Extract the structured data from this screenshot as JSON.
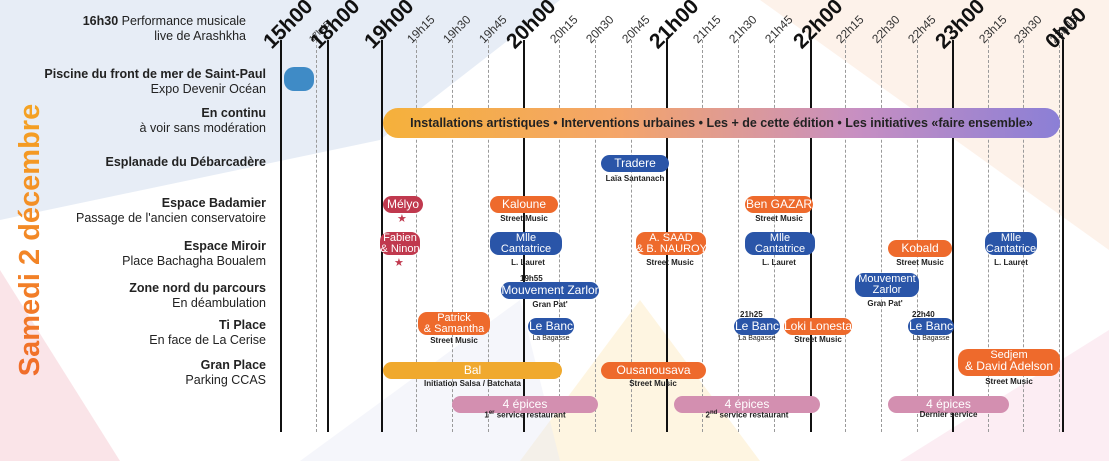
{
  "side_title": {
    "pre": "Samedi ",
    "num": "2",
    "post": " décembre"
  },
  "note": {
    "time": "16h30",
    "text_line1": "Performance musicale",
    "text_line2": "live de Arashkha"
  },
  "rows": [
    {
      "title": "Piscine du front de mer de Saint-Paul",
      "subtitle": "Expo Devenir Océan"
    },
    {
      "title": "En continu",
      "subtitle": "à voir sans modération"
    },
    {
      "title": "Esplanade du Débarcadère",
      "subtitle": ""
    },
    {
      "title": "Espace Badamier",
      "subtitle": "Passage de l'ancien conservatoire"
    },
    {
      "title": "Espace Miroir",
      "subtitle": "Place Bachagha Boualem"
    },
    {
      "title": "Zone nord du parcours",
      "subtitle": "En déambulation"
    },
    {
      "title": "Ti Place",
      "subtitle": "En face de La Cerise"
    },
    {
      "title": "Gran Place",
      "subtitle": "Parking CCAS"
    }
  ],
  "time_labels": [
    {
      "label": "15h00",
      "kind": "big"
    },
    {
      "label": "17h45",
      "kind": "tiny"
    },
    {
      "label": "18h00",
      "kind": "big"
    },
    {
      "label": "19h00",
      "kind": "big"
    },
    {
      "label": "19h15",
      "kind": "small"
    },
    {
      "label": "19h30",
      "kind": "small"
    },
    {
      "label": "19h45",
      "kind": "small"
    },
    {
      "label": "20h00",
      "kind": "big"
    },
    {
      "label": "20h15",
      "kind": "small"
    },
    {
      "label": "20h30",
      "kind": "small"
    },
    {
      "label": "20h45",
      "kind": "small"
    },
    {
      "label": "21h00",
      "kind": "big"
    },
    {
      "label": "21h15",
      "kind": "small"
    },
    {
      "label": "21h30",
      "kind": "small"
    },
    {
      "label": "21h45",
      "kind": "small"
    },
    {
      "label": "22h00",
      "kind": "big"
    },
    {
      "label": "22h15",
      "kind": "small"
    },
    {
      "label": "22h30",
      "kind": "small"
    },
    {
      "label": "22h45",
      "kind": "small"
    },
    {
      "label": "23h00",
      "kind": "big"
    },
    {
      "label": "23h15",
      "kind": "small"
    },
    {
      "label": "23h30",
      "kind": "small"
    },
    {
      "label": "23h45",
      "kind": "small"
    },
    {
      "label": "0h00",
      "kind": "big"
    }
  ],
  "continuous_banner": "Installations artistiques • Interventions urbaines • Les + de cette édition •  Les initiatives «faire ensemble»",
  "events": {
    "tradere": {
      "name": "Tradere",
      "sub": "Laïa Santanach"
    },
    "melyo": {
      "name": "Mélyo"
    },
    "kaloune": {
      "name": "Kaloune",
      "sub": "Street Music"
    },
    "ben_gazar": {
      "name": "Ben GAZAR",
      "sub": "Street Music"
    },
    "fabien": {
      "line1": "Fabien",
      "line2": "& Ninon"
    },
    "cantatrice1": {
      "line1": "Mlle",
      "line2": "Cantatrice",
      "sub": "L. Lauret"
    },
    "asaad": {
      "line1": "A. SAAD",
      "line2": "& B. NAUROY",
      "sub": "Street Music"
    },
    "cantatrice2": {
      "line1": "Mlle",
      "line2": "Cantatrice",
      "sub": "L. Lauret"
    },
    "kobald": {
      "name": "Kobald",
      "sub": "Street Music"
    },
    "cantatrice3": {
      "line1": "Mlle",
      "line2": "Cantatrice",
      "sub": "L. Lauret"
    },
    "zarlor1": {
      "time": "19h55",
      "name": "Mouvement Zarlor",
      "sub": "Gran Pat'"
    },
    "zarlor2": {
      "line1": "Mouvement",
      "line2": "Zarlor",
      "sub": "Gran Pat'"
    },
    "patrick": {
      "line1": "Patrick",
      "line2": "& Samantha",
      "sub": "Street Music"
    },
    "lebanc1": {
      "name": "Le Banc",
      "sub": "La Bagasse"
    },
    "lebanc2": {
      "time": "21h25",
      "name": "Le Banc",
      "sub": "La Bagasse"
    },
    "loki": {
      "name": "Loki Lonestar",
      "sub": "Street Music"
    },
    "lebanc3": {
      "time": "22h40",
      "name": "Le Banc",
      "sub": "La Bagasse"
    },
    "bal": {
      "name": "Bal",
      "sub": "Initiation Salsa / Batchata"
    },
    "ousanousava": {
      "name": "Ousanousava",
      "sub": "Street Music"
    },
    "sedjem": {
      "line1": "Sedjem",
      "line2": "& David Adelson",
      "sub": "Street Music"
    },
    "epices1": {
      "name": "4 épices",
      "sub_num": "1",
      "sub_sup": "er",
      "sub_rest": " service restaurant"
    },
    "epices2": {
      "name": "4 épices",
      "sub_num": "2",
      "sub_sup": "nd",
      "sub_rest": " service restaurant"
    },
    "epices3": {
      "name": "4 épices",
      "sub": "Dernier service"
    }
  },
  "colors": {
    "blue": "#2a55a8",
    "orange": "#ee6a2c",
    "pink": "#c0394e",
    "yellow": "#f0a92e",
    "mauve": "#d38fb0",
    "light_blue": "#3f8bc6"
  }
}
